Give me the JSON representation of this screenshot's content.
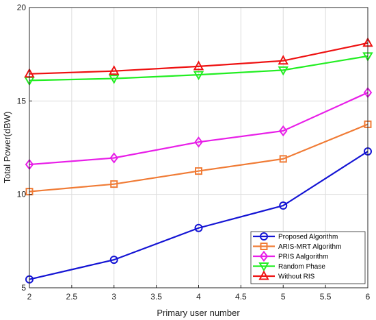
{
  "chart_data": {
    "type": "line",
    "xlabel": "Primary user number",
    "ylabel": "Total Power(dBW)",
    "xlim": [
      2,
      6
    ],
    "ylim": [
      5,
      20
    ],
    "grid": true,
    "legend_position": "bottom-right",
    "x_ticks": [
      "2",
      "2.5",
      "3",
      "3.5",
      "4",
      "4.5",
      "5",
      "5.5",
      "6"
    ],
    "y_ticks": [
      "5",
      "10",
      "15",
      "20"
    ],
    "x": [
      2,
      3,
      4,
      5,
      6
    ],
    "series": [
      {
        "name": "Proposed Algorithm",
        "values": [
          5.45,
          6.5,
          8.2,
          9.4,
          12.3
        ],
        "color": "#1414d4",
        "marker": "circle"
      },
      {
        "name": "ARIS-MRT Algorithm",
        "values": [
          10.15,
          10.55,
          11.25,
          11.9,
          13.75
        ],
        "color": "#f07b35",
        "marker": "square"
      },
      {
        "name": "PRIS Aalgorithm",
        "values": [
          11.6,
          11.95,
          12.8,
          13.4,
          15.45
        ],
        "color": "#e81ee8",
        "marker": "diamond"
      },
      {
        "name": "Random Phase",
        "values": [
          16.1,
          16.2,
          16.4,
          16.65,
          17.4
        ],
        "color": "#22ee22",
        "marker": "triangle-down"
      },
      {
        "name": "Without RIS",
        "values": [
          16.45,
          16.6,
          16.85,
          17.15,
          18.1
        ],
        "color": "#ee1111",
        "marker": "triangle-up"
      }
    ]
  }
}
